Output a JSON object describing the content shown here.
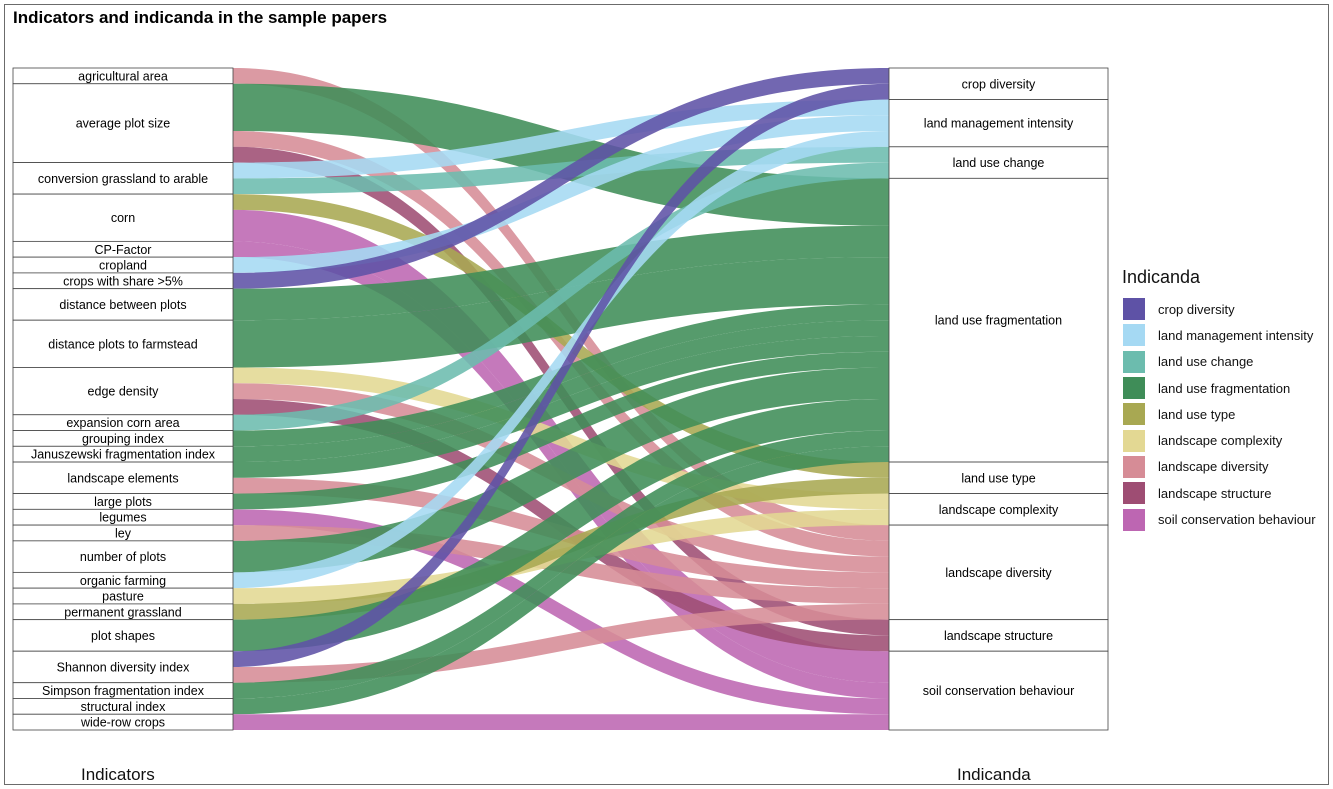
{
  "chart_data": {
    "type": "alluvial",
    "title": "Indicators and indicanda in the sample papers",
    "axes": [
      "Indicators",
      "Indicanda"
    ],
    "legend_title": "Indicanda",
    "legend_position": "right",
    "colors": {
      "crop diversity": "#5e52a6",
      "land management intensity": "#a5d9f3",
      "land use change": "#6cbcae",
      "land use fragmentation": "#3f8d58",
      "land use type": "#a8a852",
      "landscape complexity": "#e3d893",
      "landscape diversity": "#d68c96",
      "landscape structure": "#9e4d73",
      "soil conservation behaviour": "#bd66b2"
    },
    "indicators": [
      "agricultural area",
      "average plot size",
      "conversion grassland to arable",
      "corn",
      "CP-Factor",
      "cropland",
      "crops with share >5%",
      "distance between plots",
      "distance plots to farmstead",
      "edge density",
      "expansion corn area",
      "grouping index",
      "Januszewski fragmentation index",
      "landscape elements",
      "large plots",
      "legumes",
      "ley",
      "number of plots",
      "organic farming",
      "pasture",
      "permanent grassland",
      "plot shapes",
      "Shannon diversity index",
      "Simpson fragmentation index",
      "structural index",
      "wide-row crops"
    ],
    "indicanda": [
      "crop diversity",
      "land management intensity",
      "land use change",
      "land use fragmentation",
      "land use type",
      "landscape complexity",
      "landscape diversity",
      "landscape structure",
      "soil conservation behaviour"
    ],
    "flows": [
      {
        "from": "agricultural area",
        "to": "landscape diversity",
        "value": 1
      },
      {
        "from": "average plot size",
        "to": "land use fragmentation",
        "value": 3
      },
      {
        "from": "average plot size",
        "to": "landscape diversity",
        "value": 1
      },
      {
        "from": "average plot size",
        "to": "landscape structure",
        "value": 1
      },
      {
        "from": "conversion grassland to arable",
        "to": "land use change",
        "value": 1
      },
      {
        "from": "conversion grassland to arable",
        "to": "land management intensity",
        "value": 1
      },
      {
        "from": "corn",
        "to": "land use type",
        "value": 1
      },
      {
        "from": "corn",
        "to": "soil conservation behaviour",
        "value": 2
      },
      {
        "from": "CP-Factor",
        "to": "soil conservation behaviour",
        "value": 1
      },
      {
        "from": "cropland",
        "to": "land management intensity",
        "value": 1
      },
      {
        "from": "crops with share >5%",
        "to": "crop diversity",
        "value": 1
      },
      {
        "from": "distance between plots",
        "to": "land use fragmentation",
        "value": 2
      },
      {
        "from": "distance plots to farmstead",
        "to": "land use fragmentation",
        "value": 3
      },
      {
        "from": "edge density",
        "to": "landscape complexity",
        "value": 1
      },
      {
        "from": "edge density",
        "to": "landscape diversity",
        "value": 1
      },
      {
        "from": "edge density",
        "to": "landscape structure",
        "value": 1
      },
      {
        "from": "expansion corn area",
        "to": "land use change",
        "value": 1
      },
      {
        "from": "grouping index",
        "to": "land use fragmentation",
        "value": 1
      },
      {
        "from": "Januszewski fragmentation index",
        "to": "land use fragmentation",
        "value": 1
      },
      {
        "from": "landscape elements",
        "to": "landscape diversity",
        "value": 1
      },
      {
        "from": "landscape elements",
        "to": "land use fragmentation",
        "value": 1
      },
      {
        "from": "large plots",
        "to": "land use fragmentation",
        "value": 1
      },
      {
        "from": "legumes",
        "to": "soil conservation behaviour",
        "value": 1
      },
      {
        "from": "ley",
        "to": "landscape diversity",
        "value": 1
      },
      {
        "from": "number of plots",
        "to": "land use fragmentation",
        "value": 2
      },
      {
        "from": "organic farming",
        "to": "land management intensity",
        "value": 1
      },
      {
        "from": "pasture",
        "to": "landscape complexity",
        "value": 1
      },
      {
        "from": "permanent grassland",
        "to": "land use type",
        "value": 1
      },
      {
        "from": "plot shapes",
        "to": "land use fragmentation",
        "value": 2
      },
      {
        "from": "Shannon diversity index",
        "to": "crop diversity",
        "value": 1
      },
      {
        "from": "Shannon diversity index",
        "to": "landscape diversity",
        "value": 1
      },
      {
        "from": "Simpson fragmentation index",
        "to": "land use fragmentation",
        "value": 1
      },
      {
        "from": "structural index",
        "to": "land use fragmentation",
        "value": 1
      },
      {
        "from": "wide-row crops",
        "to": "soil conservation behaviour",
        "value": 1
      }
    ]
  }
}
